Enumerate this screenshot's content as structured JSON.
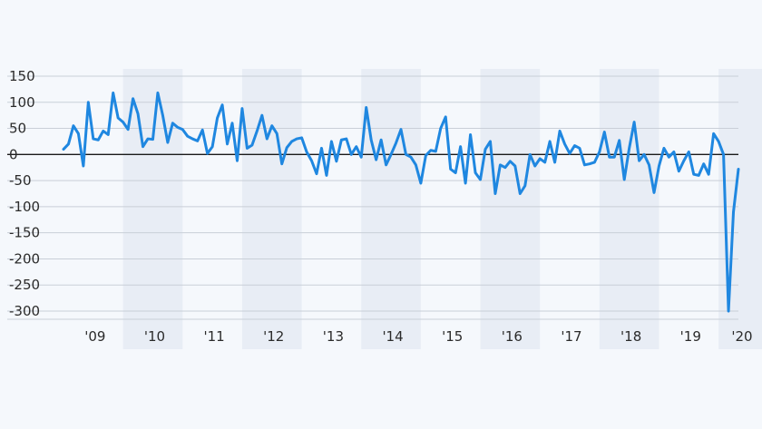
{
  "chart_data": {
    "type": "line",
    "title": "",
    "xlabel": "",
    "ylabel": "",
    "ylim": [
      -300,
      150
    ],
    "xlim": [
      "2009-01",
      "2020-05"
    ],
    "y_ticks": [
      150,
      100,
      50,
      0,
      -50,
      -100,
      -150,
      -200,
      -250,
      -300
    ],
    "y_tick_labels": [
      "150",
      "100",
      "50",
      "0",
      "-50",
      "-100",
      "-150",
      "-200",
      "-250",
      "-300"
    ],
    "x_tick_labels": [
      "'09",
      "'10",
      "'11",
      "'12",
      "'13",
      "'14",
      "'15",
      "'16",
      "'17",
      "'18",
      "'19",
      "'20"
    ],
    "x_tick_years": [
      2009,
      2010,
      2011,
      2012,
      2013,
      2014,
      2015,
      2016,
      2017,
      2018,
      2019,
      2020
    ],
    "shaded_years": [
      2010,
      2012,
      2014,
      2016,
      2018,
      2020
    ],
    "grid": "horizontal",
    "line_color": "#1f87e0",
    "shade_color": "#e8edf5",
    "series": [
      {
        "name": "",
        "dates": [
          "2009-01",
          "2009-02",
          "2009-03",
          "2009-04",
          "2009-05",
          "2009-06",
          "2009-07",
          "2009-08",
          "2009-09",
          "2009-10",
          "2009-11",
          "2009-12",
          "2010-01",
          "2010-02",
          "2010-03",
          "2010-04",
          "2010-05",
          "2010-06",
          "2010-07",
          "2010-08",
          "2010-09",
          "2010-10",
          "2010-11",
          "2010-12",
          "2011-01",
          "2011-02",
          "2011-03",
          "2011-04",
          "2011-05",
          "2011-06",
          "2011-07",
          "2011-08",
          "2011-09",
          "2011-10",
          "2011-11",
          "2011-12",
          "2012-01",
          "2012-02",
          "2012-03",
          "2012-04",
          "2012-05",
          "2012-06",
          "2012-07",
          "2012-08",
          "2012-09",
          "2012-10",
          "2012-11",
          "2012-12",
          "2013-01",
          "2013-02",
          "2013-03",
          "2013-04",
          "2013-05",
          "2013-06",
          "2013-07",
          "2013-08",
          "2013-09",
          "2013-10",
          "2013-11",
          "2013-12",
          "2014-01",
          "2014-02",
          "2014-03",
          "2014-04",
          "2014-05",
          "2014-06",
          "2014-07",
          "2014-08",
          "2014-09",
          "2014-10",
          "2014-11",
          "2014-12",
          "2015-01",
          "2015-02",
          "2015-03",
          "2015-04",
          "2015-05",
          "2015-06",
          "2015-07",
          "2015-08",
          "2015-09",
          "2015-10",
          "2015-11",
          "2015-12",
          "2016-01",
          "2016-02",
          "2016-03",
          "2016-04",
          "2016-05",
          "2016-06",
          "2016-07",
          "2016-08",
          "2016-09",
          "2016-10",
          "2016-11",
          "2016-12",
          "2017-01",
          "2017-02",
          "2017-03",
          "2017-04",
          "2017-05",
          "2017-06",
          "2017-07",
          "2017-08",
          "2017-09",
          "2017-10",
          "2017-11",
          "2017-12",
          "2018-01",
          "2018-02",
          "2018-03",
          "2018-04",
          "2018-05",
          "2018-06",
          "2018-07",
          "2018-08",
          "2018-09",
          "2018-10",
          "2018-11",
          "2018-12",
          "2019-01",
          "2019-02",
          "2019-03",
          "2019-04",
          "2019-05",
          "2019-06",
          "2019-07",
          "2019-08",
          "2019-09",
          "2019-10",
          "2019-11",
          "2019-12",
          "2020-01",
          "2020-02",
          "2020-03",
          "2020-04",
          "2020-05"
        ],
        "values": [
          10,
          20,
          55,
          40,
          -22,
          100,
          30,
          28,
          45,
          38,
          118,
          70,
          62,
          48,
          107,
          78,
          15,
          30,
          29,
          118,
          75,
          23,
          60,
          52,
          48,
          35,
          30,
          26,
          47,
          2,
          15,
          70,
          95,
          20,
          60,
          -12,
          88,
          12,
          18,
          45,
          75,
          30,
          55,
          40,
          -18,
          13,
          25,
          30,
          32,
          5,
          -12,
          -37,
          12,
          -40,
          25,
          -13,
          28,
          30,
          0,
          15,
          -5,
          90,
          28,
          -10,
          28,
          -20,
          0,
          22,
          48,
          0,
          -5,
          -20,
          -55,
          -2,
          8,
          6,
          50,
          72,
          -28,
          -35,
          15,
          -55,
          38,
          -35,
          -48,
          10,
          25,
          -75,
          -20,
          -25,
          -13,
          -22,
          -75,
          -60,
          0,
          -22,
          -8,
          -15,
          25,
          -15,
          45,
          20,
          2,
          17,
          12,
          -20,
          -18,
          -15,
          5,
          43,
          -5,
          -5,
          27,
          -48,
          12,
          62,
          -12,
          0,
          -20,
          -73,
          -22,
          12,
          -5,
          5,
          -32,
          -12,
          5,
          -38,
          -40,
          -18,
          -38,
          40,
          25,
          0,
          -300,
          -110,
          -28
        ]
      }
    ]
  }
}
